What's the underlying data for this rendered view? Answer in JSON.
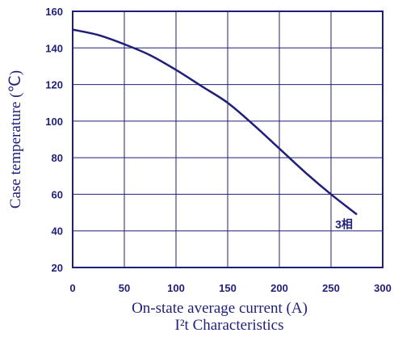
{
  "chart_data": {
    "type": "line",
    "xlabel": "On-state average current (A)",
    "ylabel": "Case temperature (℃)",
    "caption": "I²t Characteristics",
    "xlim": [
      0,
      300
    ],
    "ylim": [
      20,
      160
    ],
    "x_ticks": [
      0,
      50,
      100,
      150,
      200,
      250,
      300
    ],
    "y_ticks": [
      20,
      40,
      60,
      80,
      100,
      120,
      140,
      160
    ],
    "grid": true,
    "series": [
      {
        "name": "3相",
        "x": [
          0,
          25,
          50,
          75,
          100,
          125,
          150,
          175,
          200,
          225,
          250,
          275
        ],
        "y": [
          150,
          147,
          142,
          136,
          128,
          119,
          110,
          98,
          85,
          72,
          60,
          49
        ]
      }
    ],
    "colors": {
      "line": "#1f1f7a",
      "grid": "#1f1f7a",
      "text": "#1f1f7a"
    }
  }
}
